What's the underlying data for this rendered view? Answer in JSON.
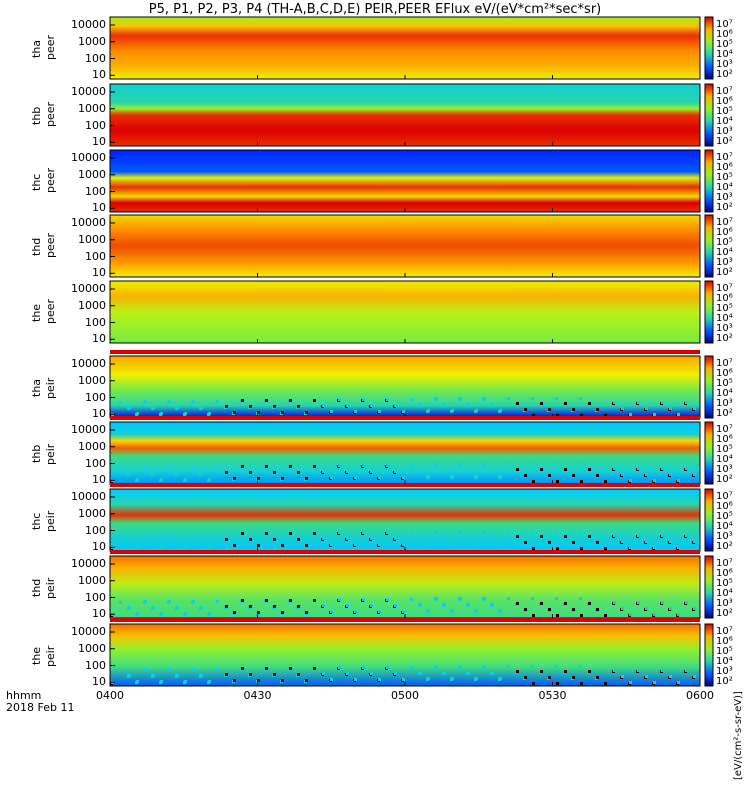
{
  "chart_data": {
    "type": "heatmap",
    "title": "P5, P1, P2, P3, P4 (TH-A,B,C,D,E) PEIR,PEER EFlux eV/(eV*cm²*sec*sr)",
    "x_tick_labels": [
      "0400",
      "0430",
      "0500",
      "0530",
      "0600"
    ],
    "x_ticks_minutes": [
      0,
      30,
      60,
      90,
      120
    ],
    "xlim_minutes": [
      0,
      120
    ],
    "x_caption": [
      "hhmm",
      "2018 Feb 11"
    ],
    "y_tick_labels": [
      "10",
      "100",
      "1000",
      "10000"
    ],
    "ylog": true,
    "colorbar_labels": [
      "10⁷",
      "10⁶",
      "10⁵",
      "10⁴",
      "10³",
      "10²"
    ],
    "colorbar_unit_label": "[eV/(cm²-s-sr-eV)]",
    "panels": [
      {
        "probe": "tha",
        "species": "peer",
        "profile": "e_red"
      },
      {
        "probe": "thb",
        "species": "peer",
        "profile": "e_inner"
      },
      {
        "probe": "thc",
        "species": "peer",
        "profile": "e_inner2"
      },
      {
        "probe": "thd",
        "species": "peer",
        "profile": "e_red2"
      },
      {
        "probe": "the",
        "species": "peer",
        "profile": "e_the"
      },
      {
        "probe": "tha",
        "species": "peir",
        "profile": "i_a"
      },
      {
        "probe": "thb",
        "species": "peir",
        "profile": "i_b"
      },
      {
        "probe": "thc",
        "species": "peir",
        "profile": "i_c"
      },
      {
        "probe": "thd",
        "species": "peir",
        "profile": "i_d"
      },
      {
        "probe": "the",
        "species": "peir",
        "profile": "i_e"
      }
    ]
  }
}
